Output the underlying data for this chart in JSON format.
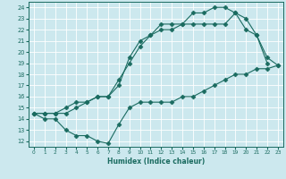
{
  "xlabel": "Humidex (Indice chaleur)",
  "xlim": [
    -0.5,
    23.5
  ],
  "ylim": [
    11.5,
    24.5
  ],
  "xticks": [
    0,
    1,
    2,
    3,
    4,
    5,
    6,
    7,
    8,
    9,
    10,
    11,
    12,
    13,
    14,
    15,
    16,
    17,
    18,
    19,
    20,
    21,
    22,
    23
  ],
  "yticks": [
    12,
    13,
    14,
    15,
    16,
    17,
    18,
    19,
    20,
    21,
    22,
    23,
    24
  ],
  "bg_color": "#cce8ee",
  "line_color": "#1a6b60",
  "curve1_x": [
    0,
    1,
    2,
    3,
    4,
    5,
    6,
    7,
    8,
    9,
    10,
    11,
    12,
    13,
    14,
    15,
    16,
    17,
    18,
    19,
    20,
    21,
    22,
    23
  ],
  "curve1_y": [
    14.5,
    14.0,
    14.0,
    13.0,
    12.5,
    12.5,
    12.0,
    11.8,
    13.5,
    15.0,
    15.5,
    15.5,
    15.5,
    15.5,
    16.0,
    16.0,
    16.5,
    17.0,
    17.5,
    18.0,
    18.0,
    18.5,
    18.5,
    18.8
  ],
  "curve2_x": [
    0,
    1,
    2,
    3,
    4,
    5,
    6,
    7,
    8,
    9,
    10,
    11,
    12,
    13,
    14,
    15,
    16,
    17,
    18,
    19,
    20,
    21,
    22
  ],
  "curve2_y": [
    14.5,
    14.5,
    14.5,
    14.5,
    15.0,
    15.5,
    16.0,
    16.0,
    17.5,
    19.0,
    20.5,
    21.5,
    22.0,
    22.0,
    22.5,
    22.5,
    22.5,
    22.5,
    22.5,
    23.5,
    23.0,
    21.5,
    19.0
  ],
  "curve3_x": [
    0,
    1,
    2,
    3,
    4,
    5,
    6,
    7,
    8,
    9,
    10,
    11,
    12,
    13,
    14,
    15,
    16,
    17,
    18,
    19,
    20,
    21,
    22,
    23
  ],
  "curve3_y": [
    14.5,
    14.5,
    14.5,
    15.0,
    15.5,
    15.5,
    16.0,
    16.0,
    17.0,
    19.5,
    21.0,
    21.5,
    22.5,
    22.5,
    22.5,
    23.5,
    23.5,
    24.0,
    24.0,
    23.5,
    22.0,
    21.5,
    19.5,
    18.8
  ]
}
